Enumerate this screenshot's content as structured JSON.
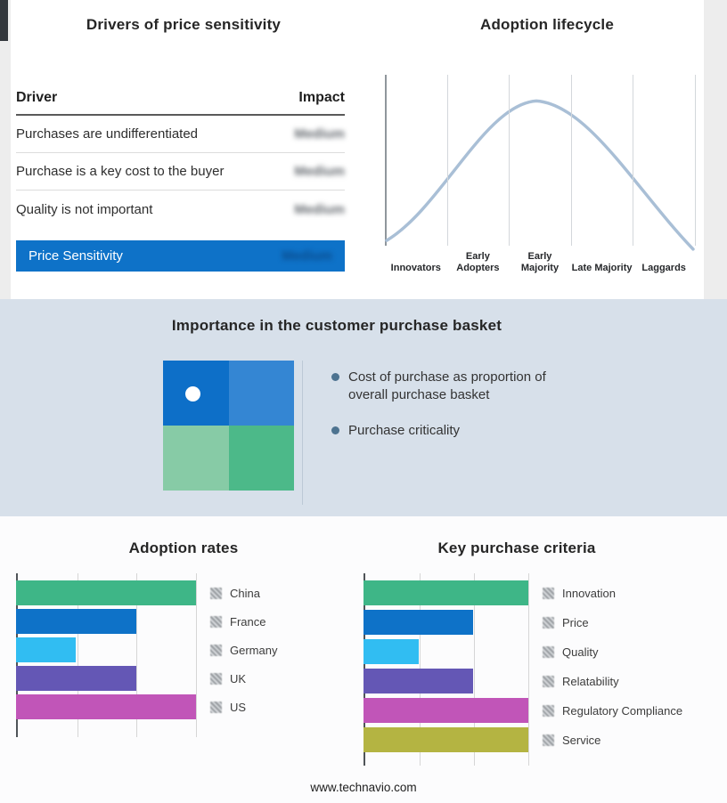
{
  "page": {
    "footer": "www.technavio.com"
  },
  "colors": {
    "accent_blue": "#0e72c8",
    "band_bg": "#d7e0ea",
    "curve": "#a9bfd6"
  },
  "drivers_panel": {
    "title": "Drivers of price sensitivity",
    "columns": {
      "driver": "Driver",
      "impact": "Impact"
    },
    "rows": [
      {
        "driver": "Purchases are undifferentiated",
        "impact": "Medium"
      },
      {
        "driver": "Purchase is a key cost to the buyer",
        "impact": "Medium"
      },
      {
        "driver": "Quality is not important",
        "impact": "Medium"
      }
    ],
    "highlight_row": {
      "driver": "Price Sensitivity",
      "impact": "Medium"
    }
  },
  "lifecycle_panel": {
    "title": "Adoption lifecycle",
    "stages": [
      "Innovators",
      "Early Adopters",
      "Early Majority",
      "Late Majority",
      "Laggards"
    ]
  },
  "basket_panel": {
    "title": "Importance in the customer purchase basket",
    "bullets": [
      "Cost of purchase as proportion of overall purchase basket",
      "Purchase criticality"
    ],
    "quadrant_colors": {
      "top_left": "#0d6fc8",
      "top_right": "#3486d3",
      "bottom_left": "#87cba6",
      "bottom_right": "#4cb989"
    }
  },
  "adoption_chart": {
    "title": "Adoption rates",
    "track_width": 202,
    "row_gap": 4,
    "gridlines": [
      0.3333,
      0.6667,
      1
    ],
    "max": 3,
    "rows": [
      {
        "label": "China",
        "value": 3,
        "color": "#3eb687"
      },
      {
        "label": "France",
        "value": 2,
        "color": "#0e72c8"
      },
      {
        "label": "Germany",
        "value": 1,
        "color": "#31bdf2"
      },
      {
        "label": "UK",
        "value": 2,
        "color": "#6457b5"
      },
      {
        "label": "US",
        "value": 3,
        "color": "#c155b8"
      }
    ]
  },
  "criteria_chart": {
    "title": "Key purchase criteria",
    "track_width": 185,
    "row_gap": 5,
    "gridlines": [
      0.3333,
      0.6667,
      1
    ],
    "max": 3,
    "rows": [
      {
        "label": "Innovation",
        "value": 3,
        "color": "#3eb687"
      },
      {
        "label": "Price",
        "value": 2,
        "color": "#0e72c8"
      },
      {
        "label": "Quality",
        "value": 1,
        "color": "#31bdf2"
      },
      {
        "label": "Relatability",
        "value": 2,
        "color": "#6457b5"
      },
      {
        "label": "Regulatory Compliance",
        "value": 3,
        "color": "#c155b8"
      },
      {
        "label": "Service",
        "value": 3,
        "color": "#b4b442"
      }
    ]
  },
  "chart_data": [
    {
      "type": "bar",
      "orientation": "horizontal",
      "title": "Adoption rates",
      "categories": [
        "China",
        "France",
        "Germany",
        "UK",
        "US"
      ],
      "values": [
        3,
        2,
        1,
        2,
        3
      ],
      "xlabel": "",
      "ylabel": "",
      "xlim": [
        0,
        3
      ],
      "grid": true,
      "legend_position": "right",
      "note": "no numeric axis labels shown; values estimated from gridlines"
    },
    {
      "type": "bar",
      "orientation": "horizontal",
      "title": "Key purchase criteria",
      "categories": [
        "Innovation",
        "Price",
        "Quality",
        "Relatability",
        "Regulatory Compliance",
        "Service"
      ],
      "values": [
        3,
        2,
        1,
        2,
        3,
        3
      ],
      "xlabel": "",
      "ylabel": "",
      "xlim": [
        0,
        3
      ],
      "grid": true,
      "legend_position": "right",
      "note": "no numeric axis labels shown; values estimated from gridlines"
    },
    {
      "type": "line",
      "title": "Adoption lifecycle",
      "categories": [
        "Innovators",
        "Early Adopters",
        "Early Majority",
        "Late Majority",
        "Laggards"
      ],
      "x": [
        0,
        1,
        2,
        3,
        4
      ],
      "values": [
        0.05,
        0.55,
        1.0,
        0.55,
        0.05
      ],
      "grid": true,
      "note": "bell curve peaking at Early Majority; no numeric axes"
    },
    {
      "type": "table",
      "title": "Drivers of price sensitivity",
      "columns": [
        "Driver",
        "Impact"
      ],
      "rows": [
        [
          "Purchases are undifferentiated",
          "Medium"
        ],
        [
          "Purchase is a key cost to the buyer",
          "Medium"
        ],
        [
          "Quality is not important",
          "Medium"
        ],
        [
          "Price Sensitivity",
          "Medium"
        ]
      ],
      "note": "impact values shown blurred/redacted in source image"
    }
  ]
}
